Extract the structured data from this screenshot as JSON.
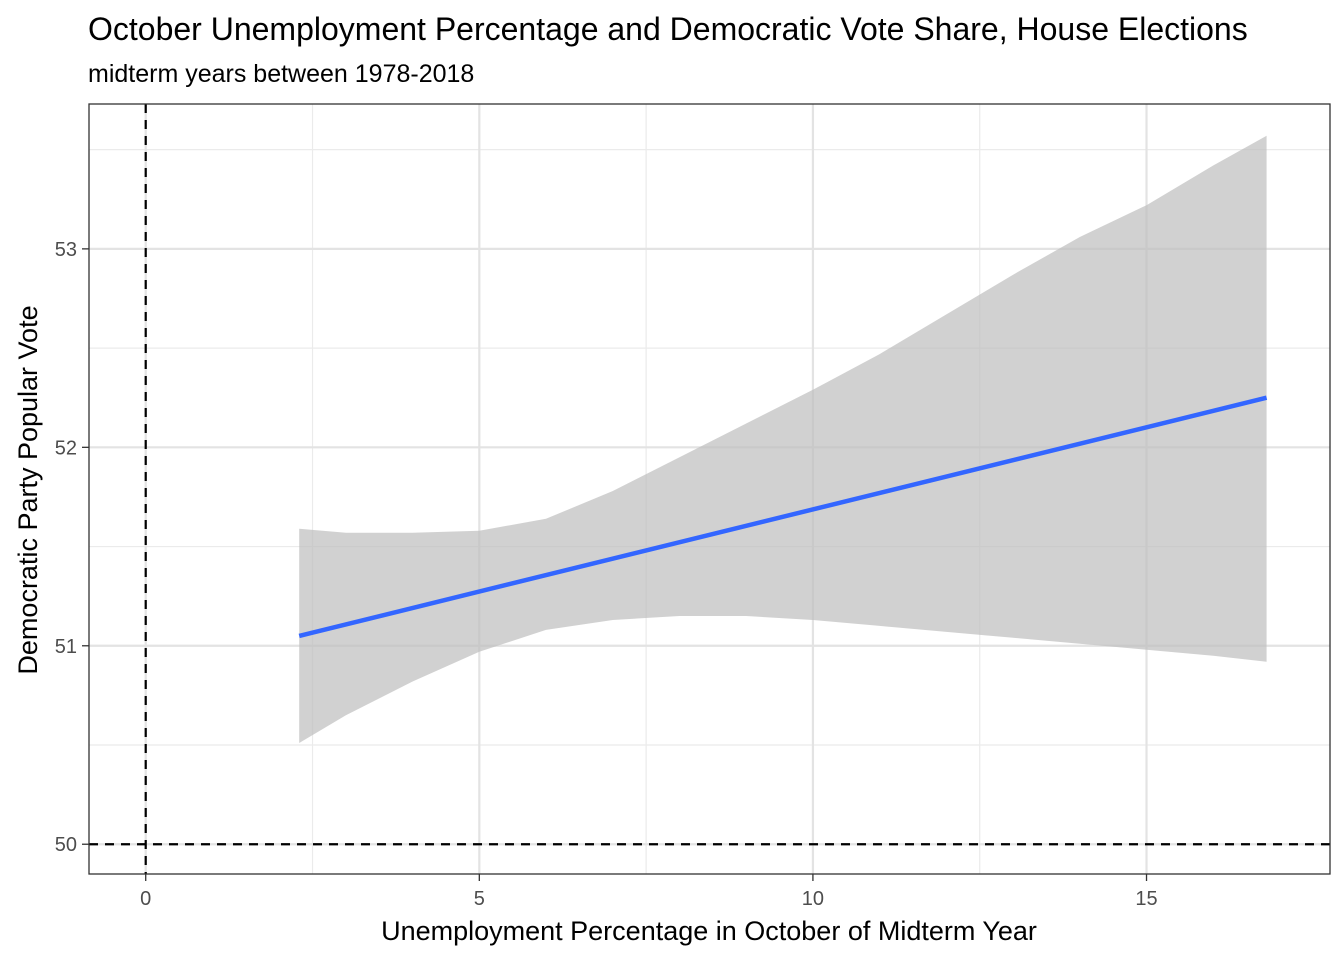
{
  "chart_data": {
    "type": "line",
    "title": "October Unemployment Percentage and Democratic Vote Share, House Elections",
    "subtitle": "midterm years between 1978-2018",
    "xlabel": "Unemployment Percentage in October of Midterm Year",
    "ylabel": "Democratic Party Popular Vote",
    "xlim": [
      -0.85,
      17.75
    ],
    "ylim": [
      49.85,
      53.73
    ],
    "x_ticks": [
      0,
      5,
      10,
      15
    ],
    "y_ticks": [
      50,
      51,
      52,
      53
    ],
    "x_tick_labels": [
      "0",
      "5",
      "10",
      "15"
    ],
    "y_tick_labels": [
      "50",
      "51",
      "52",
      "53"
    ],
    "grid": true,
    "reference_lines": {
      "vertical_x": 0,
      "horizontal_y": 50,
      "style": "dashed"
    },
    "series": [
      {
        "x": [
          2.3,
          16.8
        ],
        "y": [
          51.05,
          52.25
        ],
        "color": "#3366ff"
      }
    ],
    "confidence_band": {
      "color": "#bdbdbd",
      "x": [
        2.3,
        3,
        4,
        5,
        6,
        7,
        8,
        9,
        10,
        11,
        12,
        13,
        14,
        15,
        16,
        16.8
      ],
      "upper": [
        51.59,
        51.57,
        51.57,
        51.58,
        51.64,
        51.78,
        51.95,
        52.12,
        52.29,
        52.47,
        52.67,
        52.87,
        53.06,
        53.22,
        53.42,
        53.57
      ],
      "lower": [
        50.51,
        50.65,
        50.82,
        50.97,
        51.08,
        51.13,
        51.15,
        51.15,
        51.13,
        51.1,
        51.07,
        51.04,
        51.01,
        50.98,
        50.95,
        50.92
      ]
    }
  }
}
